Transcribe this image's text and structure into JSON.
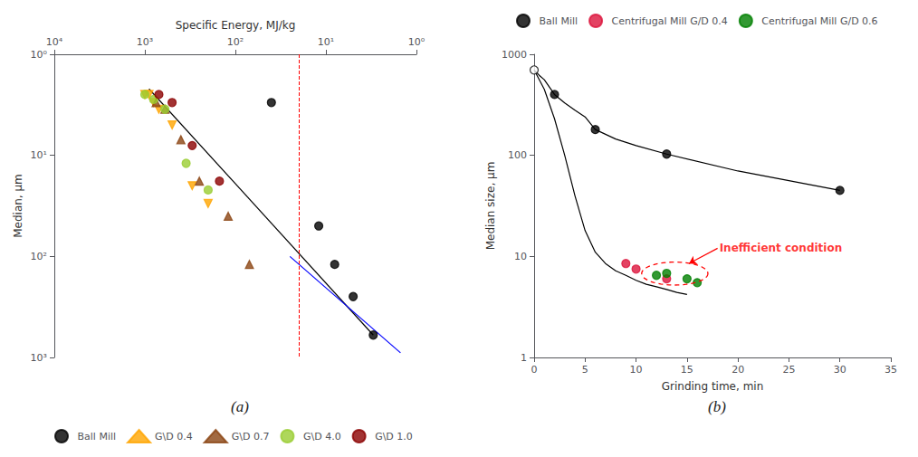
{
  "chart_data": [
    {
      "type": "scatter",
      "title": "(a)",
      "x_label": "Specific Energy, MJ/kg",
      "y_label": "Median, μm",
      "log": true,
      "xlim": [
        10000,
        1
      ],
      "ylim": [
        1000,
        1
      ],
      "xticks": [
        {
          "value": 1,
          "label": "10⁰"
        },
        {
          "value": 10,
          "label": "10¹"
        },
        {
          "value": 100,
          "label": "10²"
        },
        {
          "value": 1000,
          "label": "10³"
        },
        {
          "value": 10000,
          "label": "10⁴"
        }
      ],
      "yticks": [
        {
          "value": 1,
          "label": "10⁰"
        },
        {
          "value": 10,
          "label": "10¹"
        },
        {
          "value": 100,
          "label": "10²"
        },
        {
          "value": 1000,
          "label": "10³"
        }
      ],
      "grid": false,
      "legend": "bottom",
      "series": [
        {
          "name": "Ball Mill",
          "type": "scatter",
          "color": "black",
          "marker": "circle",
          "x": [
            3,
            5,
            8,
            12,
            40
          ],
          "values": [
            600,
            250,
            120,
            50,
            3
          ]
        },
        {
          "name": "G\\D 0.4",
          "type": "scatter",
          "color": "orange",
          "marker": "triangle_down",
          "x": [
            200,
            300,
            500,
            700,
            800,
            900,
            1000
          ],
          "values": [
            30,
            20,
            5,
            3.5,
            3,
            2.5,
            2.5
          ]
        },
        {
          "name": "G\\D 0.7",
          "type": "scatter",
          "color": "saddlebrown",
          "marker": "triangle",
          "x": [
            70,
            120,
            250,
            400,
            600,
            750
          ],
          "values": [
            120,
            40,
            18,
            7,
            3.5,
            3.0
          ]
        },
        {
          "name": "G\\D 4.0",
          "type": "scatter",
          "color": "yellowgreen",
          "marker": "circle",
          "x": [
            200,
            350,
            600,
            800,
            1000
          ],
          "values": [
            22,
            12,
            3.5,
            2.8,
            2.5
          ]
        },
        {
          "name": "G\\D 1.0",
          "type": "scatter",
          "color": "darkred",
          "marker": "circle",
          "x": [
            150,
            300,
            500,
            700
          ],
          "values": [
            18,
            8,
            3.0,
            2.5
          ]
        },
        {
          "type": "line",
          "color": "black",
          "marker": "none",
          "x": [
            3,
            900
          ],
          "values": [
            600,
            2.2
          ]
        },
        {
          "type": "line",
          "color": "blue",
          "marker": "none",
          "x": [
            1.5,
            25
          ],
          "values": [
            900,
            100
          ]
        }
      ],
      "annotations": [
        {
          "type": "vline",
          "x": 20,
          "color": "red",
          "line_style": "dashed"
        }
      ]
    },
    {
      "type": "scatter",
      "title": "(b)",
      "x_label": "Grinding time, min",
      "y_label": "Median size, μm",
      "log": "y",
      "xlim": [
        0,
        35
      ],
      "ylim": [
        1,
        1000
      ],
      "xticks": [
        0,
        5,
        10,
        15,
        20,
        25,
        30,
        35
      ],
      "yticks": [
        1,
        10,
        100,
        1000
      ],
      "grid": false,
      "legend": "top",
      "series": [
        {
          "type": "line",
          "color": "black",
          "marker": "none",
          "x": [
            0,
            0.5,
            1,
            2,
            3,
            4,
            5,
            6,
            8,
            10,
            13,
            20,
            30
          ],
          "values": [
            700,
            620,
            560,
            400,
            330,
            280,
            240,
            180,
            145,
            125,
            103,
            70,
            45
          ]
        },
        {
          "type": "line",
          "color": "black",
          "marker": "none",
          "x": [
            0,
            1,
            2,
            3,
            4,
            5,
            6,
            7,
            8,
            9,
            10,
            11,
            12,
            13,
            14,
            15
          ],
          "values": [
            700,
            450,
            230,
            100,
            40,
            18,
            11,
            8.5,
            7.2,
            6.5,
            5.8,
            5.3,
            5.0,
            4.7,
            4.4,
            4.2
          ]
        },
        {
          "name": "Ball Mill",
          "type": "scatter",
          "color": "black",
          "colors": [
            "white",
            "black",
            "black",
            "black",
            "black"
          ],
          "marker": "circle",
          "x": [
            0,
            2,
            6,
            13,
            30
          ],
          "values": [
            700,
            400,
            180,
            103,
            45
          ]
        },
        {
          "name": "Centrifugal Mill G/D 0.4",
          "type": "scatter",
          "color": "crimson",
          "marker": "circle",
          "x": [
            9,
            10,
            13
          ],
          "values": [
            8.5,
            7.5,
            6.0
          ]
        },
        {
          "name": "Centrifugal Mill G/D 0.6",
          "type": "scatter",
          "color": "green",
          "marker": "circle",
          "x": [
            12,
            13,
            15,
            16
          ],
          "values": [
            6.5,
            6.8,
            6.0,
            5.5
          ]
        }
      ],
      "annotations": [
        {
          "type": "ellipse",
          "x": 13.8,
          "y": 6.998419960022735,
          "width": 6.5,
          "height": 3.583208,
          "color": "red",
          "line_style": "dashed"
        },
        {
          "type": "arrow",
          "text": "Inefficient condition",
          "x": 18,
          "y": 12.022644346174129,
          "x_to": 15.2,
          "y_to": 8.511380382023765,
          "color": "red"
        }
      ]
    }
  ]
}
